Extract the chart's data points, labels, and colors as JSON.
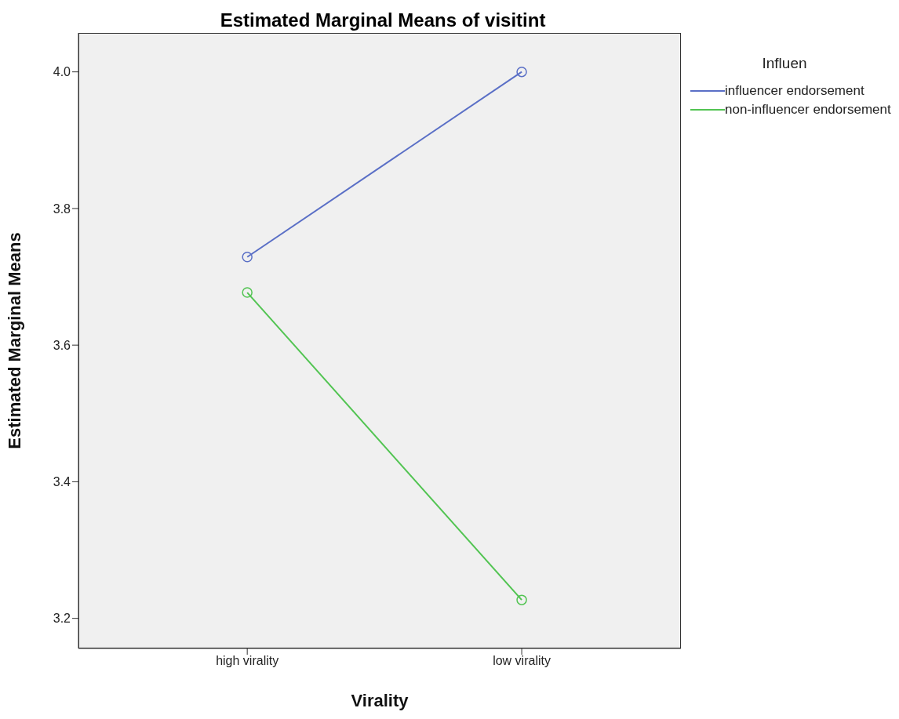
{
  "chart_data": {
    "type": "line",
    "title": "Estimated Marginal Means of visitint",
    "xlabel": "Virality",
    "ylabel": "Estimated Marginal Means",
    "legend_title": "Influen",
    "categories": [
      "high virality",
      "low virality"
    ],
    "series": [
      {
        "name": "influencer endorsement",
        "color": "#5a6fc6",
        "values": [
          3.729,
          4.0
        ]
      },
      {
        "name": "non-influencer endorsement",
        "color": "#52c452",
        "values": [
          3.677,
          3.227
        ]
      }
    ],
    "ylim": [
      3.156,
      4.057
    ],
    "yticks": [
      {
        "value": 3.2,
        "label": "3.2"
      },
      {
        "value": 3.4,
        "label": "3.4"
      },
      {
        "value": 3.6,
        "label": "3.6"
      },
      {
        "value": 3.8,
        "label": "3.8"
      },
      {
        "value": 4.0,
        "label": "4.0"
      }
    ],
    "grid": false,
    "legend": "top right",
    "marker": "circle",
    "line_style": "solid"
  }
}
